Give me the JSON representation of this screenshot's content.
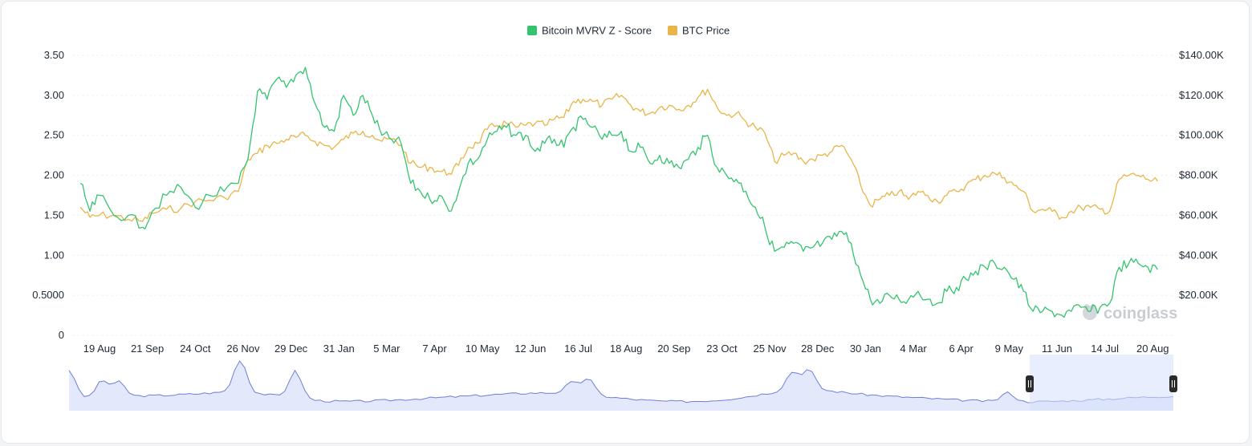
{
  "colors": {
    "mvrv": "#34c46e",
    "btc": "#e8b548",
    "grid": "#eef0f3",
    "axis_text": "#1f2937",
    "navigator_line": "#6f7fd6",
    "navigator_fill": "#e3e8fb",
    "navigator_window": "#d6e0fb",
    "watermark": "#c9cdd3"
  },
  "watermark": {
    "text": "coinglass",
    "icon": "coinglass-logo-icon"
  },
  "chart_data": {
    "type": "line",
    "title": "",
    "legend": {
      "placement": "top-center",
      "entries": [
        "Bitcoin MVRV Z - Score",
        "BTC Price"
      ]
    },
    "grid": true,
    "x_ticks": [
      "19 Aug",
      "21 Sep",
      "24 Oct",
      "26 Nov",
      "29 Dec",
      "31 Jan",
      "5 Mar",
      "7 Apr",
      "10 May",
      "12 Jun",
      "16 Jul",
      "18 Aug",
      "20 Sep",
      "23 Oct",
      "25 Nov",
      "28 Dec",
      "30 Jan",
      "4 Mar",
      "6 Apr",
      "9 May",
      "11 Jun",
      "14 Jul",
      "20 Aug"
    ],
    "y_left": {
      "ticks": [
        "0",
        "0.5000",
        "1.00",
        "1.50",
        "2.00",
        "2.50",
        "3.00",
        "3.50"
      ],
      "range": [
        0,
        3.5
      ]
    },
    "y_right": {
      "ticks": [
        "$20.00K",
        "$40.00K",
        "$60.00K",
        "$80.00K",
        "$100.00K",
        "$120.00K",
        "$140.00K"
      ],
      "range": [
        0,
        140000
      ]
    },
    "x_range": [
      0,
      22.5
    ],
    "series": [
      {
        "name": "Bitcoin MVRV Z - Score",
        "axis": "left",
        "points": [
          [
            -0.4,
            1.9
          ],
          [
            -0.2,
            1.55
          ],
          [
            0,
            1.75
          ],
          [
            0.3,
            1.5
          ],
          [
            0.6,
            1.5
          ],
          [
            0.9,
            1.35
          ],
          [
            1.1,
            1.55
          ],
          [
            1.4,
            1.75
          ],
          [
            1.7,
            1.85
          ],
          [
            2.0,
            1.6
          ],
          [
            2.3,
            1.75
          ],
          [
            2.6,
            1.8
          ],
          [
            2.9,
            1.9
          ],
          [
            3.1,
            2.2
          ],
          [
            3.3,
            3.05
          ],
          [
            3.5,
            2.95
          ],
          [
            3.7,
            3.2
          ],
          [
            3.9,
            3.1
          ],
          [
            4.1,
            3.25
          ],
          [
            4.3,
            3.35
          ],
          [
            4.5,
            2.9
          ],
          [
            4.7,
            2.6
          ],
          [
            4.9,
            2.55
          ],
          [
            5.1,
            3.0
          ],
          [
            5.3,
            2.75
          ],
          [
            5.5,
            3.0
          ],
          [
            5.7,
            2.75
          ],
          [
            5.9,
            2.5
          ],
          [
            6.1,
            2.45
          ],
          [
            6.3,
            2.4
          ],
          [
            6.5,
            1.9
          ],
          [
            6.7,
            1.8
          ],
          [
            6.9,
            1.7
          ],
          [
            7.1,
            1.75
          ],
          [
            7.3,
            1.55
          ],
          [
            7.5,
            1.8
          ],
          [
            7.7,
            2.15
          ],
          [
            7.9,
            2.2
          ],
          [
            8.1,
            2.45
          ],
          [
            8.3,
            2.55
          ],
          [
            8.5,
            2.6
          ],
          [
            8.7,
            2.5
          ],
          [
            8.9,
            2.5
          ],
          [
            9.1,
            2.3
          ],
          [
            9.3,
            2.4
          ],
          [
            9.5,
            2.45
          ],
          [
            9.7,
            2.35
          ],
          [
            9.9,
            2.6
          ],
          [
            10.1,
            2.7
          ],
          [
            10.3,
            2.6
          ],
          [
            10.5,
            2.45
          ],
          [
            10.7,
            2.5
          ],
          [
            10.9,
            2.55
          ],
          [
            11.1,
            2.3
          ],
          [
            11.3,
            2.35
          ],
          [
            11.5,
            2.15
          ],
          [
            11.7,
            2.25
          ],
          [
            11.9,
            2.15
          ],
          [
            12.1,
            2.1
          ],
          [
            12.3,
            2.2
          ],
          [
            12.5,
            2.35
          ],
          [
            12.7,
            2.5
          ],
          [
            12.9,
            2.1
          ],
          [
            13.1,
            2.0
          ],
          [
            13.3,
            1.95
          ],
          [
            13.5,
            1.8
          ],
          [
            13.7,
            1.6
          ],
          [
            13.9,
            1.35
          ],
          [
            14.1,
            1.05
          ],
          [
            14.3,
            1.1
          ],
          [
            14.5,
            1.15
          ],
          [
            14.7,
            1.05
          ],
          [
            14.9,
            1.1
          ],
          [
            15.1,
            1.15
          ],
          [
            15.3,
            1.2
          ],
          [
            15.5,
            1.3
          ],
          [
            15.7,
            1.15
          ],
          [
            15.9,
            0.75
          ],
          [
            16.1,
            0.45
          ],
          [
            16.3,
            0.4
          ],
          [
            16.5,
            0.5
          ],
          [
            16.7,
            0.45
          ],
          [
            16.9,
            0.45
          ],
          [
            17.1,
            0.55
          ],
          [
            17.3,
            0.45
          ],
          [
            17.5,
            0.4
          ],
          [
            17.7,
            0.55
          ],
          [
            17.9,
            0.6
          ],
          [
            18.1,
            0.7
          ],
          [
            18.3,
            0.8
          ],
          [
            18.5,
            0.85
          ],
          [
            18.7,
            0.9
          ],
          [
            18.9,
            0.85
          ],
          [
            19.1,
            0.7
          ],
          [
            19.3,
            0.55
          ],
          [
            19.5,
            0.3
          ],
          [
            19.7,
            0.3
          ],
          [
            19.9,
            0.3
          ],
          [
            20.1,
            0.25
          ],
          [
            20.3,
            0.3
          ],
          [
            20.5,
            0.35
          ],
          [
            20.7,
            0.3
          ],
          [
            20.9,
            0.35
          ],
          [
            21.1,
            0.4
          ],
          [
            21.3,
            0.85
          ],
          [
            21.5,
            0.9
          ],
          [
            21.7,
            0.9
          ],
          [
            21.9,
            0.85
          ],
          [
            22.1,
            0.82
          ]
        ]
      },
      {
        "name": "BTC Price",
        "axis": "right",
        "points": [
          [
            -0.4,
            64000
          ],
          [
            -0.2,
            59000
          ],
          [
            0,
            60000
          ],
          [
            0.3,
            60000
          ],
          [
            0.6,
            58000
          ],
          [
            0.9,
            57000
          ],
          [
            1.1,
            61000
          ],
          [
            1.4,
            63000
          ],
          [
            1.7,
            63500
          ],
          [
            2.0,
            67000
          ],
          [
            2.3,
            67500
          ],
          [
            2.6,
            69000
          ],
          [
            2.9,
            72000
          ],
          [
            3.1,
            88000
          ],
          [
            3.3,
            91000
          ],
          [
            3.5,
            95000
          ],
          [
            3.7,
            96000
          ],
          [
            3.9,
            98000
          ],
          [
            4.1,
            99000
          ],
          [
            4.3,
            100000
          ],
          [
            4.5,
            97000
          ],
          [
            4.7,
            95000
          ],
          [
            4.9,
            94000
          ],
          [
            5.1,
            98000
          ],
          [
            5.3,
            101000
          ],
          [
            5.5,
            102000
          ],
          [
            5.7,
            100000
          ],
          [
            5.9,
            97000
          ],
          [
            6.1,
            98000
          ],
          [
            6.3,
            95000
          ],
          [
            6.5,
            86000
          ],
          [
            6.7,
            84000
          ],
          [
            6.9,
            84000
          ],
          [
            7.1,
            82000
          ],
          [
            7.3,
            81000
          ],
          [
            7.5,
            85000
          ],
          [
            7.7,
            94000
          ],
          [
            7.9,
            96000
          ],
          [
            8.1,
            103000
          ],
          [
            8.3,
            105000
          ],
          [
            8.5,
            106000
          ],
          [
            8.7,
            104000
          ],
          [
            8.9,
            105000
          ],
          [
            9.1,
            106000
          ],
          [
            9.3,
            105000
          ],
          [
            9.5,
            108000
          ],
          [
            9.7,
            109000
          ],
          [
            9.9,
            117000
          ],
          [
            10.1,
            118000
          ],
          [
            10.3,
            117000
          ],
          [
            10.5,
            115000
          ],
          [
            10.7,
            118000
          ],
          [
            10.9,
            120000
          ],
          [
            11.1,
            115000
          ],
          [
            11.3,
            112000
          ],
          [
            11.5,
            111000
          ],
          [
            11.7,
            114000
          ],
          [
            11.9,
            115000
          ],
          [
            12.1,
            113000
          ],
          [
            12.3,
            115000
          ],
          [
            12.5,
            119000
          ],
          [
            12.7,
            123000
          ],
          [
            12.9,
            114000
          ],
          [
            13.1,
            110000
          ],
          [
            13.3,
            111000
          ],
          [
            13.5,
            107000
          ],
          [
            13.7,
            104000
          ],
          [
            13.9,
            101000
          ],
          [
            14.1,
            87000
          ],
          [
            14.3,
            90000
          ],
          [
            14.5,
            91000
          ],
          [
            14.7,
            87000
          ],
          [
            14.9,
            88000
          ],
          [
            15.1,
            90000
          ],
          [
            15.3,
            92000
          ],
          [
            15.5,
            95000
          ],
          [
            15.7,
            88000
          ],
          [
            15.9,
            75000
          ],
          [
            16.1,
            65000
          ],
          [
            16.3,
            68000
          ],
          [
            16.5,
            70000
          ],
          [
            16.7,
            72000
          ],
          [
            16.9,
            68000
          ],
          [
            17.1,
            72000
          ],
          [
            17.3,
            70000
          ],
          [
            17.5,
            67000
          ],
          [
            17.7,
            70000
          ],
          [
            17.9,
            72000
          ],
          [
            18.1,
            75000
          ],
          [
            18.3,
            78000
          ],
          [
            18.5,
            80000
          ],
          [
            18.7,
            81000
          ],
          [
            18.9,
            79000
          ],
          [
            19.1,
            75000
          ],
          [
            19.3,
            72000
          ],
          [
            19.5,
            62000
          ],
          [
            19.7,
            63000
          ],
          [
            19.9,
            62000
          ],
          [
            20.1,
            59000
          ],
          [
            20.3,
            62000
          ],
          [
            20.5,
            64000
          ],
          [
            20.7,
            64000
          ],
          [
            20.9,
            63000
          ],
          [
            21.1,
            62000
          ],
          [
            21.3,
            78000
          ],
          [
            21.5,
            80000
          ],
          [
            21.7,
            80000
          ],
          [
            21.9,
            78000
          ],
          [
            22.1,
            77000
          ]
        ]
      }
    ]
  }
}
